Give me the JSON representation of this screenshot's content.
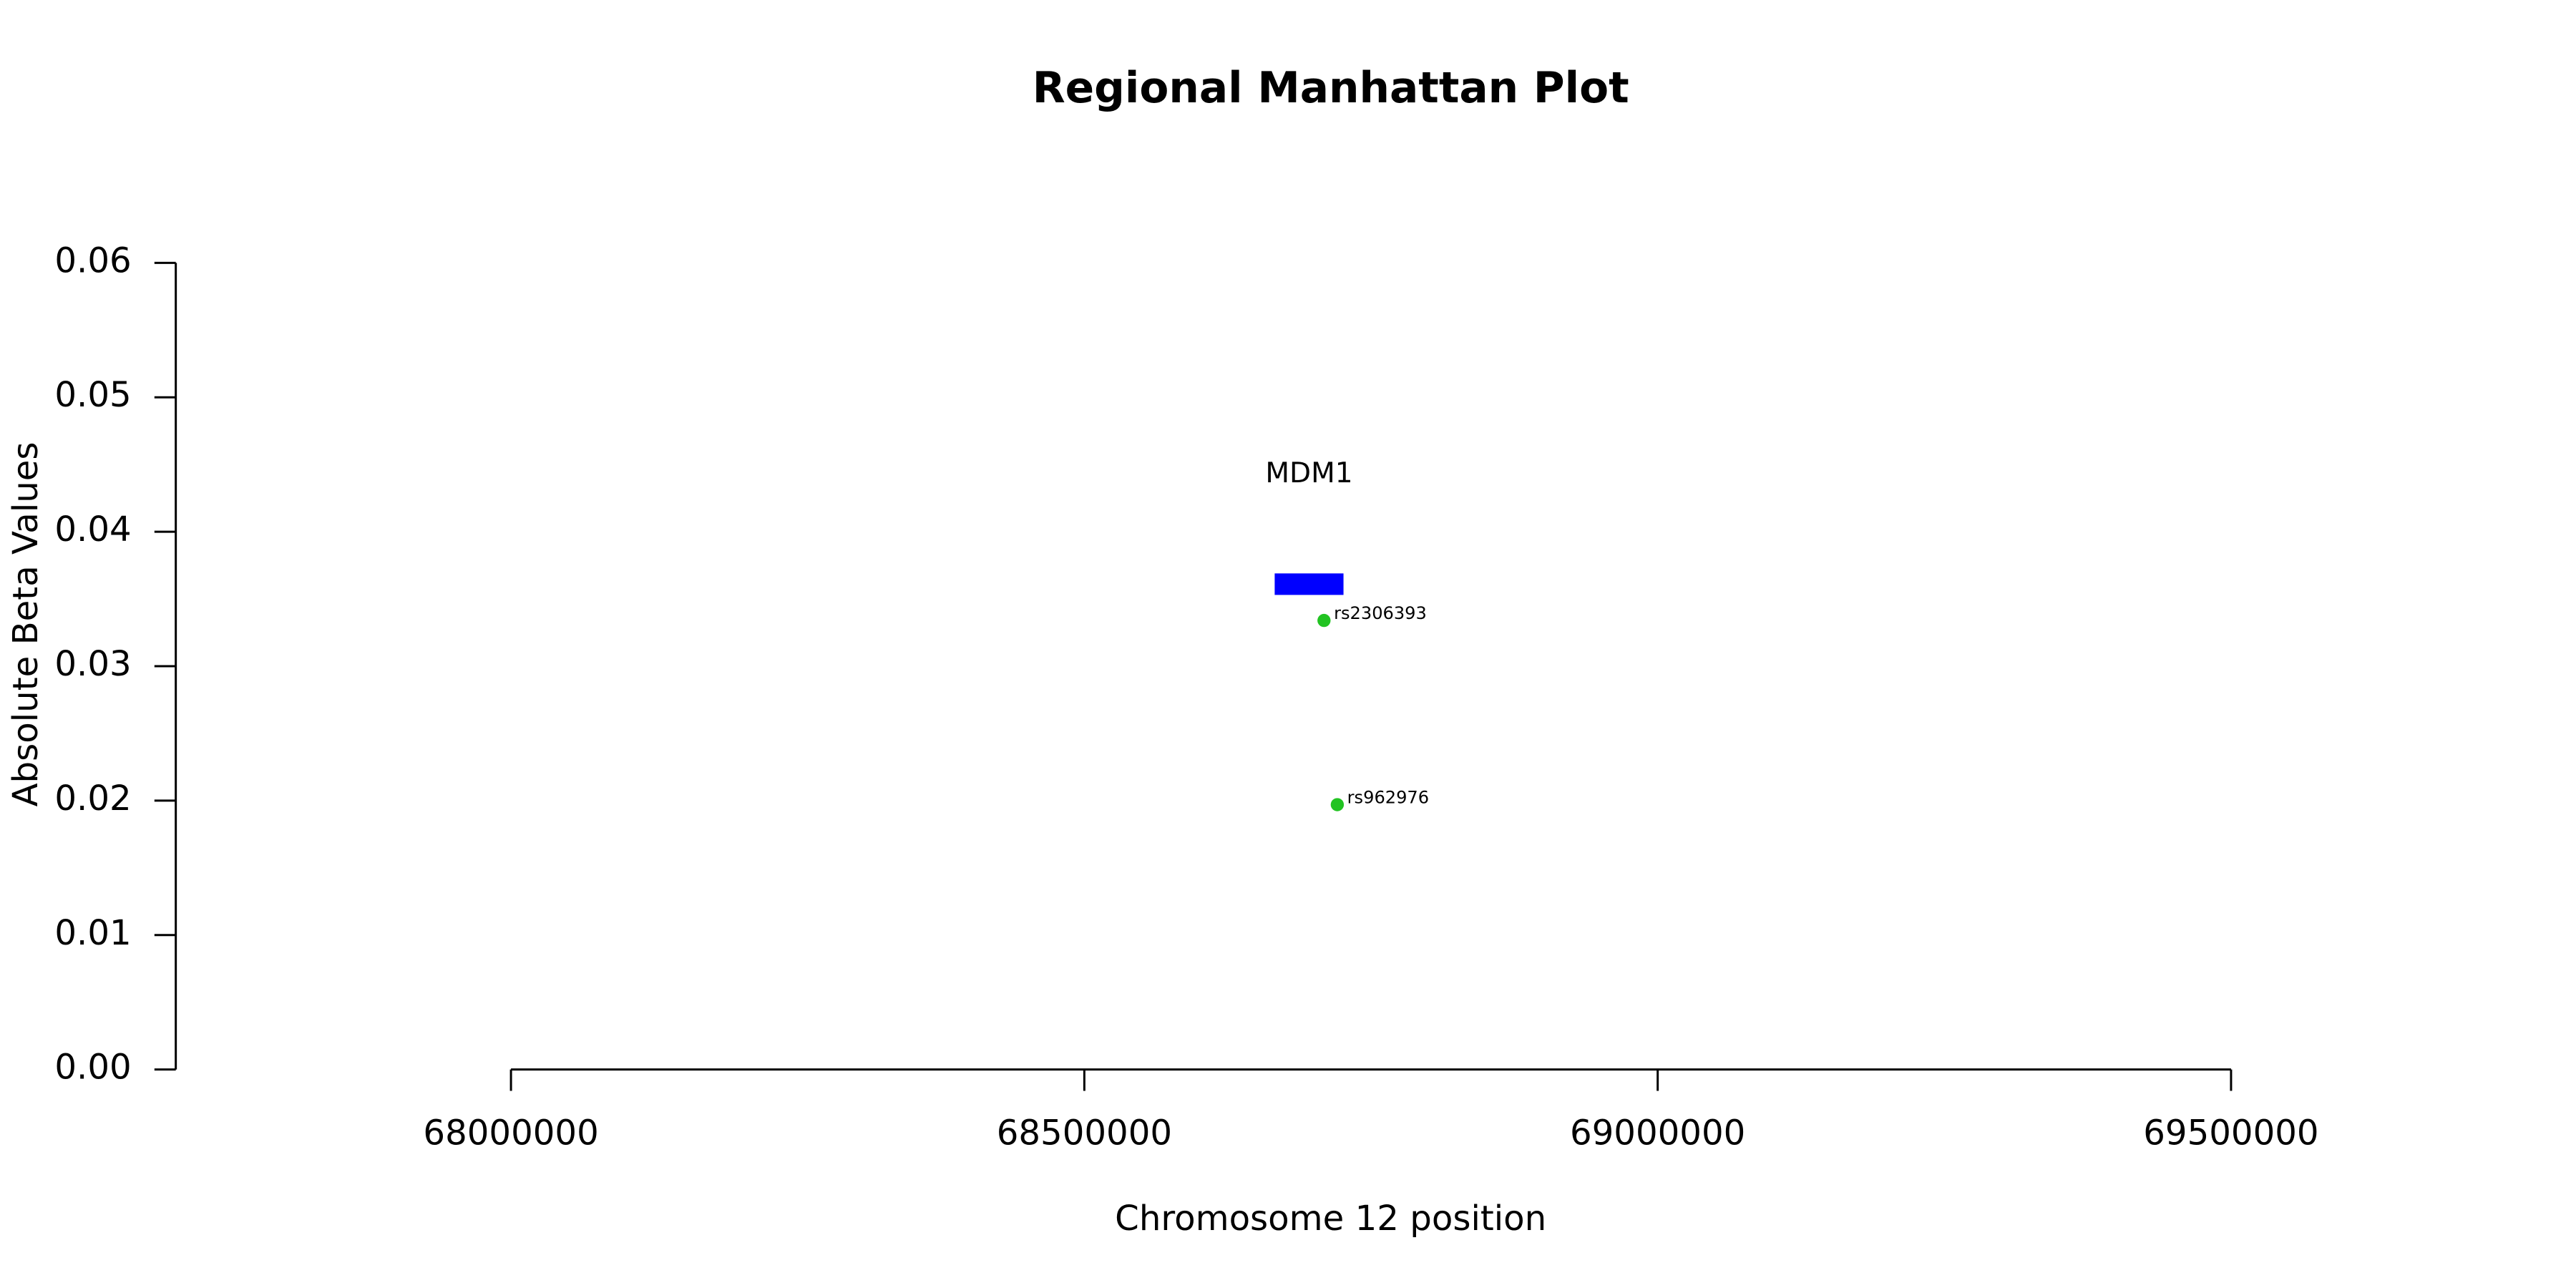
{
  "chart_data": {
    "type": "scatter",
    "title": "Regional Manhattan Plot",
    "xlabel": "Chromosome 12 position",
    "ylabel": "Absolute Beta Values",
    "x": [
      68709000,
      68720600
    ],
    "values": [
      0.0334,
      0.0197
    ],
    "point_labels": [
      "rs2306393",
      "rs962976"
    ],
    "color": "#22c322",
    "genes": [
      {
        "label": "MDM1",
        "start": 68666000,
        "end": 68726000,
        "ymin": 0.0353,
        "ymax": 0.0369,
        "color": "#0000ff"
      }
    ],
    "xlim": [
      67707700,
      69760700
    ],
    "xticks": [
      68000000,
      68500000,
      69000000,
      69500000
    ],
    "ylim": [
      0,
      0.06
    ],
    "yticks": [
      {
        "value": 0,
        "label": "0.00"
      },
      0.01,
      0.02,
      0.03,
      0.04,
      0.05,
      0.06
    ]
  }
}
